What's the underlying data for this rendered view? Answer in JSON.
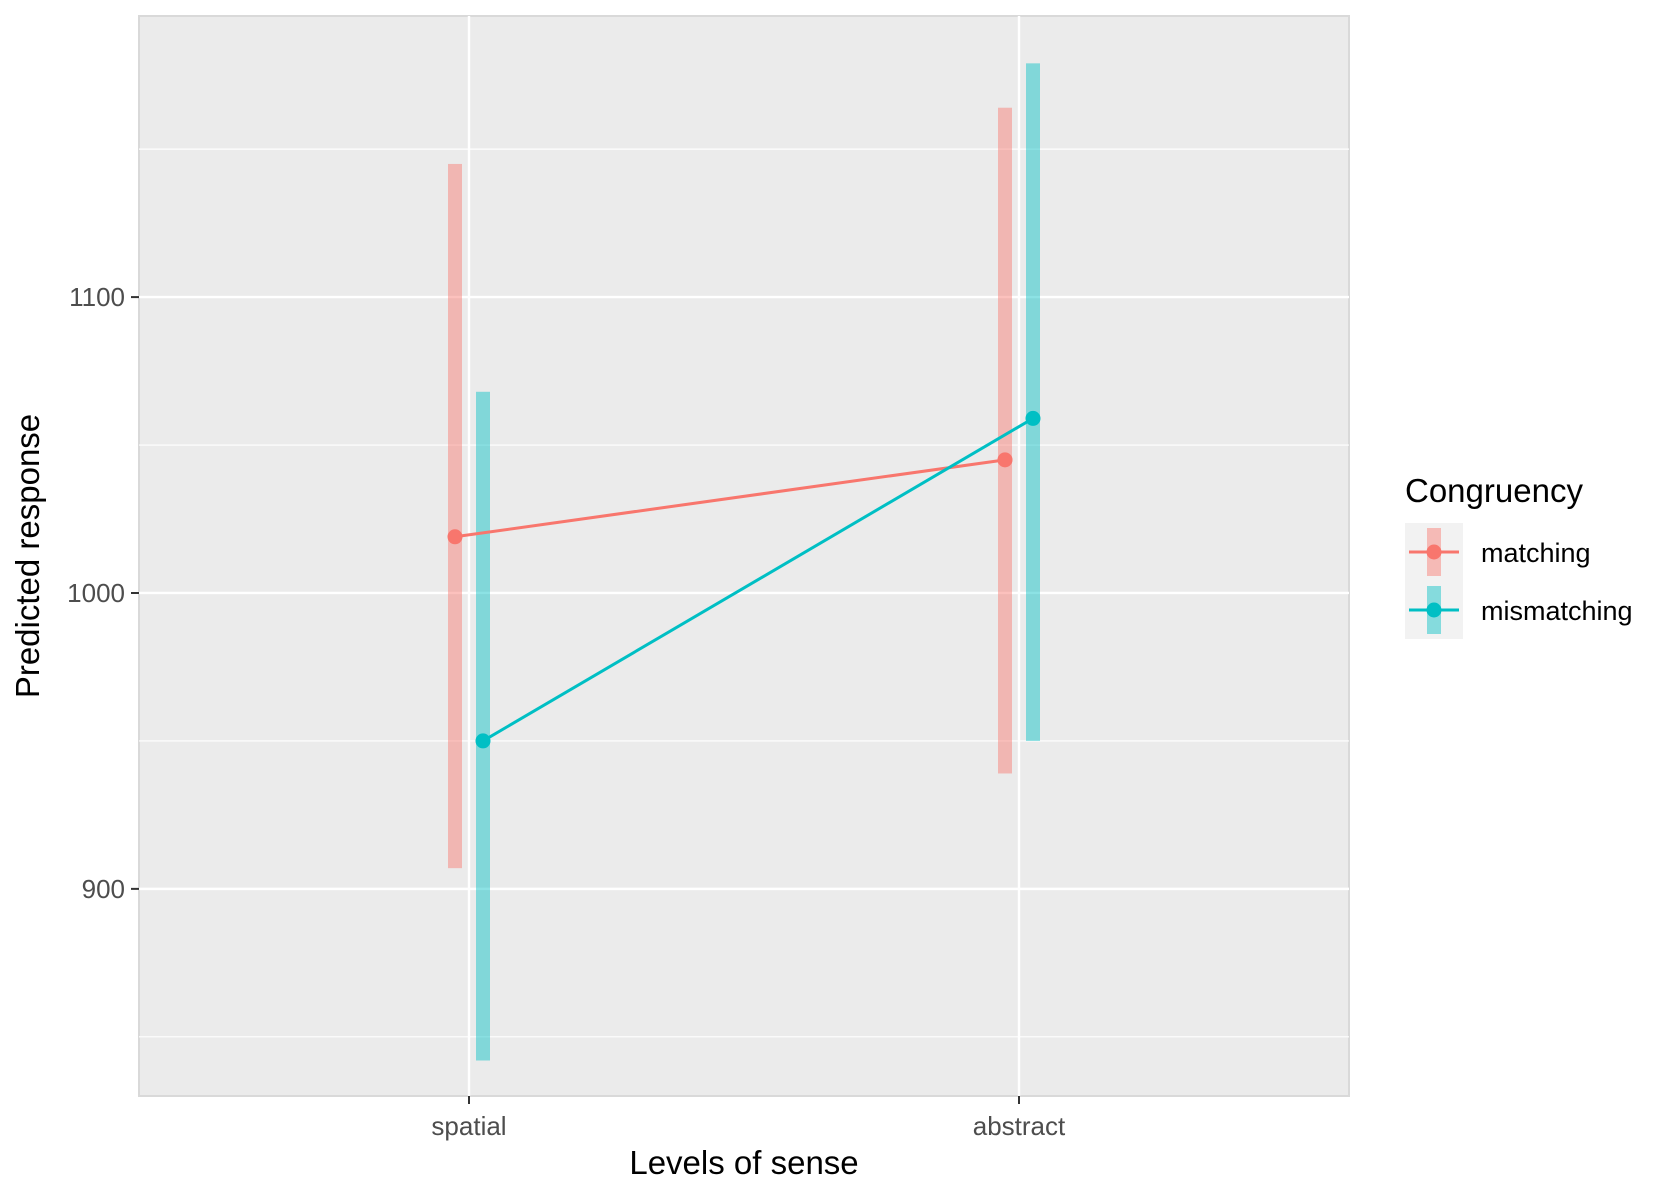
{
  "chart_data": {
    "type": "line",
    "title": "",
    "xlabel": "Levels of sense",
    "ylabel": "Predicted response",
    "categories": [
      "spatial",
      "abstract"
    ],
    "ylim": [
      830,
      1195
    ],
    "yticks": [
      900,
      1000,
      1100
    ],
    "ytick_labels": [
      "900",
      "1000",
      "1100"
    ],
    "grid": true,
    "legend": {
      "title": "Congruency",
      "position": "right"
    },
    "series": [
      {
        "name": "matching",
        "color": "#F8766D",
        "values": [
          1019,
          1045
        ],
        "ci_low": [
          907,
          939
        ],
        "ci_high": [
          1145,
          1164
        ]
      },
      {
        "name": "mismatching",
        "color": "#00BFC4",
        "values": [
          950,
          1059
        ],
        "ci_low": [
          842,
          950
        ],
        "ci_high": [
          1068,
          1179
        ]
      }
    ]
  }
}
